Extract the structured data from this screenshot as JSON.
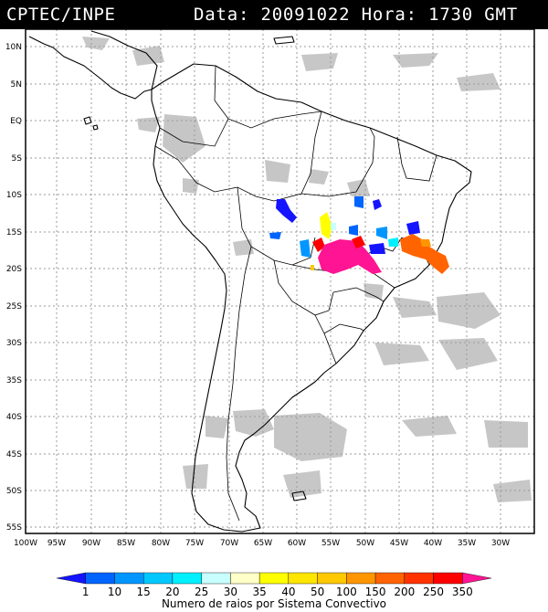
{
  "header": {
    "organization": "CPTEC/INPE",
    "date_label": "Data:",
    "date_value": "20091022",
    "hour_label": "Hora:",
    "hour_value": "1730",
    "timezone": "GMT"
  },
  "map": {
    "lat_labels": [
      "10N",
      "5N",
      "EQ",
      "5S",
      "10S",
      "15S",
      "20S",
      "25S",
      "30S",
      "35S",
      "40S",
      "45S",
      "50S",
      "55S"
    ],
    "lon_labels": [
      "100W",
      "95W",
      "90W",
      "85W",
      "80W",
      "75W",
      "70W",
      "65W",
      "60W",
      "55W",
      "50W",
      "45W",
      "40W",
      "35W",
      "30W"
    ],
    "colors": {
      "frame": "#000000",
      "grid": "#9a9a9a",
      "cloud": "#bdbdbd",
      "coast": "#000000"
    }
  },
  "colorbar": {
    "ticks": [
      "1",
      "10",
      "15",
      "20",
      "25",
      "30",
      "35",
      "40",
      "50",
      "100",
      "150",
      "200",
      "250",
      "350"
    ],
    "caption": "Numero de raios por Sistema Convectivo",
    "colors": [
      "#1414ff",
      "#0064ff",
      "#0096ff",
      "#00c8ff",
      "#00f0ff",
      "#c8ffff",
      "#ffffc8",
      "#ffff00",
      "#ffe600",
      "#ffc800",
      "#ff9600",
      "#ff6400",
      "#ff3200",
      "#ff0000",
      "#ff1493"
    ]
  }
}
